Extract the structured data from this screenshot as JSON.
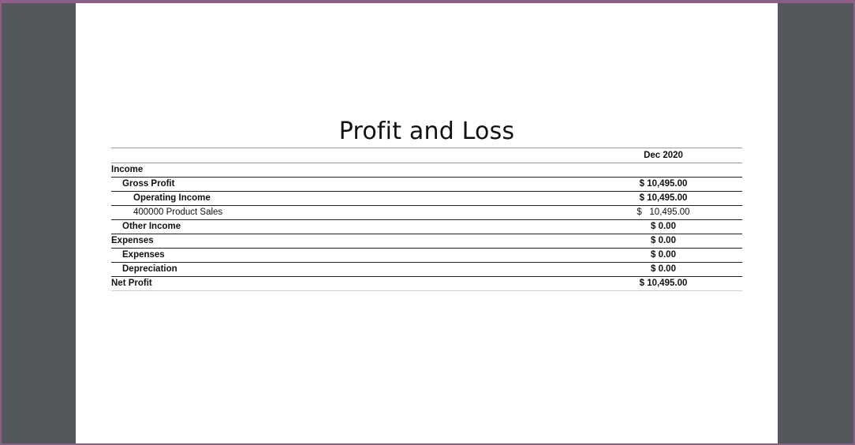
{
  "report": {
    "title": "Profit and Loss",
    "column_header": "Dec 2020",
    "rows": [
      {
        "label": "Income",
        "amount": "",
        "level": 0,
        "bold": true
      },
      {
        "label": "Gross Profit",
        "amount": "$ 10,495.00",
        "level": 1,
        "bold": true
      },
      {
        "label": "Operating Income",
        "amount": "$ 10,495.00",
        "level": 2,
        "bold": true
      },
      {
        "label": "400000 Product Sales",
        "currency": "$",
        "amount": "10,495.00",
        "level": 2,
        "bold": false
      },
      {
        "label": "Other Income",
        "amount": "$ 0.00",
        "level": 1,
        "bold": true
      },
      {
        "label": "Expenses",
        "amount": "$ 0.00",
        "level": 0,
        "bold": true
      },
      {
        "label": "Expenses",
        "amount": "$ 0.00",
        "level": 1,
        "bold": true
      },
      {
        "label": "Depreciation",
        "amount": "$ 0.00",
        "level": 1,
        "bold": true
      },
      {
        "label": "Net Profit",
        "amount": "$ 10,495.00",
        "level": 0,
        "bold": true
      }
    ]
  },
  "colors": {
    "frame_border": "#8b5f86",
    "viewer_background": "#54575b",
    "page_background": "#ffffff"
  }
}
